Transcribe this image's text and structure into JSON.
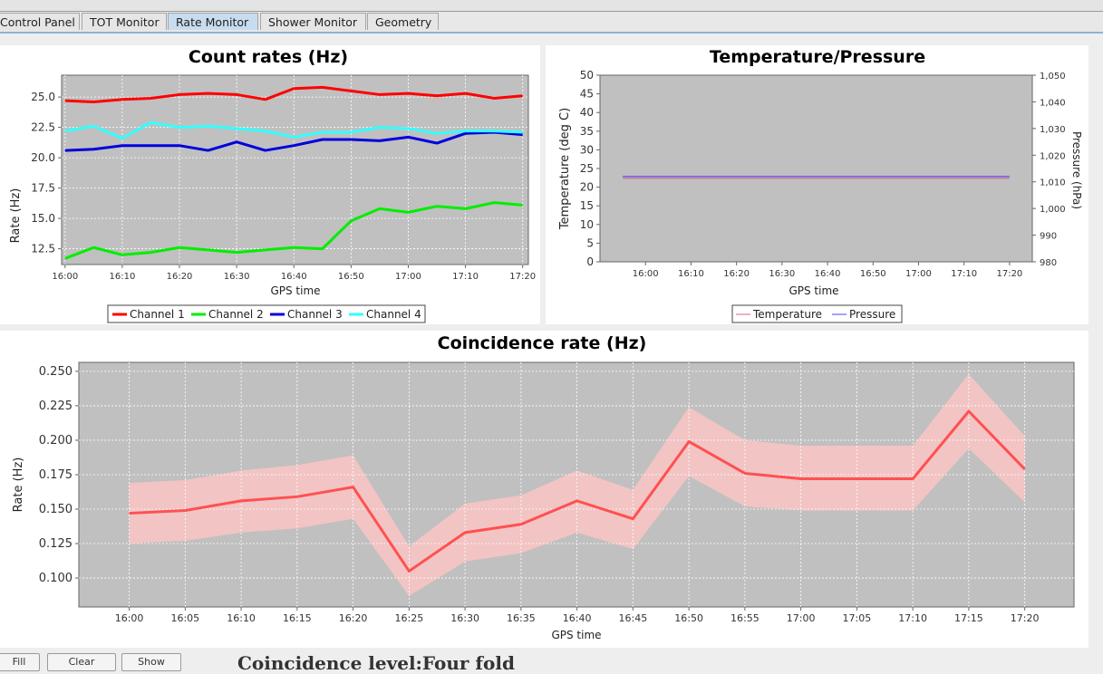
{
  "tabs": [
    {
      "label": "Control Panel",
      "active": false
    },
    {
      "label": "TOT Monitor",
      "active": false
    },
    {
      "label": "Rate Monitor",
      "active": true
    },
    {
      "label": "Shower Monitor",
      "active": false
    },
    {
      "label": "Geometry",
      "active": false
    }
  ],
  "colors": {
    "plot_bg": "#c0c0c0",
    "channel1": "#ff0000",
    "channel2": "#00ee00",
    "channel3": "#0000dd",
    "channel4": "#33ffff",
    "temperature": "#e06080",
    "pressure": "#4444ff",
    "coinc_line": "#ff5050",
    "coinc_band": "#f2c4c4"
  },
  "count_rates": {
    "chart_data": {
      "type": "line",
      "title": "Count rates (Hz)",
      "xlabel": "GPS time",
      "ylabel": "Rate (Hz)",
      "x_ticks": [
        "16:00",
        "16:10",
        "16:20",
        "16:30",
        "16:40",
        "16:50",
        "17:00",
        "17:10",
        "17:20"
      ],
      "y_ticks": [
        "12.5",
        "15.0",
        "17.5",
        "20.0",
        "22.5",
        "25.0"
      ],
      "xlim": [
        -0.6,
        81
      ],
      "ylim": [
        11.2,
        26.8
      ],
      "grid": true,
      "legend_position": "bottom",
      "x": [
        0,
        5,
        10,
        15,
        20,
        25,
        30,
        35,
        40,
        45,
        50,
        55,
        60,
        65,
        70,
        75,
        80
      ],
      "series": [
        {
          "name": "Channel 1",
          "values": [
            24.7,
            24.6,
            24.8,
            24.9,
            25.2,
            25.3,
            25.2,
            24.8,
            25.7,
            25.8,
            25.5,
            25.2,
            25.3,
            25.1,
            25.3,
            24.9,
            25.1
          ]
        },
        {
          "name": "Channel 2",
          "values": [
            11.7,
            12.6,
            12.0,
            12.2,
            12.6,
            12.4,
            12.2,
            12.4,
            12.6,
            12.5,
            14.8,
            15.8,
            15.5,
            16.0,
            15.8,
            16.3,
            16.1
          ]
        },
        {
          "name": "Channel 3",
          "values": [
            20.6,
            20.7,
            21.0,
            21.0,
            21.0,
            20.6,
            21.3,
            20.6,
            21.0,
            21.5,
            21.5,
            21.4,
            21.7,
            21.2,
            22.0,
            22.1,
            21.9
          ]
        },
        {
          "name": "Channel 4",
          "values": [
            22.2,
            22.6,
            21.6,
            22.9,
            22.5,
            22.6,
            22.4,
            22.2,
            21.7,
            22.1,
            22.1,
            22.5,
            22.4,
            22.0,
            22.2,
            22.2,
            22.1
          ]
        }
      ]
    }
  },
  "temp_pressure": {
    "chart_data": {
      "type": "line",
      "title": "Temperature/Pressure",
      "xlabel": "GPS time",
      "ylabel": "Temperature (deg C)",
      "y2label": "Pressure (hPa)",
      "x_ticks": [
        "16:00",
        "16:10",
        "16:20",
        "16:30",
        "16:40",
        "16:50",
        "17:00",
        "17:10",
        "17:20"
      ],
      "y_ticks": [
        "0",
        "5",
        "10",
        "15",
        "20",
        "25",
        "30",
        "35",
        "40",
        "45",
        "50"
      ],
      "y2_ticks": [
        "980",
        "990",
        "1,000",
        "1,010",
        "1,020",
        "1,030",
        "1,040",
        "1,050"
      ],
      "xlim": [
        -10,
        85
      ],
      "ylim": [
        0,
        50
      ],
      "y2lim": [
        980,
        1050
      ],
      "grid": false,
      "legend_position": "bottom",
      "x": [
        -5,
        80
      ],
      "series": [
        {
          "name": "Temperature",
          "axis": "left",
          "values": [
            22.4,
            22.4
          ]
        },
        {
          "name": "Pressure",
          "axis": "right",
          "values": [
            1012,
            1012
          ]
        }
      ]
    }
  },
  "coincidence": {
    "chart_data": {
      "type": "line",
      "title": "Coincidence rate (Hz)",
      "xlabel": "GPS time",
      "ylabel": "Rate (Hz)",
      "x_ticks": [
        "16:00",
        "16:05",
        "16:10",
        "16:15",
        "16:20",
        "16:25",
        "16:30",
        "16:35",
        "16:40",
        "16:45",
        "16:50",
        "16:55",
        "17:00",
        "17:05",
        "17:10",
        "17:15",
        "17:20"
      ],
      "y_ticks": [
        "0.100",
        "0.125",
        "0.150",
        "0.175",
        "0.200",
        "0.225",
        "0.250"
      ],
      "xlim": [
        -4.5,
        84.4
      ],
      "ylim": [
        0.079,
        0.2565
      ],
      "grid": true,
      "x": [
        0,
        5,
        10,
        15,
        20,
        25,
        30,
        35,
        40,
        45,
        50,
        55,
        60,
        65,
        70,
        75,
        80
      ],
      "series": [
        {
          "name": "",
          "values": [
            0.147,
            0.149,
            0.156,
            0.159,
            0.166,
            0.105,
            0.133,
            0.139,
            0.156,
            0.143,
            0.199,
            0.176,
            0.172,
            0.172,
            0.172,
            0.221,
            0.179
          ]
        }
      ],
      "upper": [
        0.169,
        0.171,
        0.178,
        0.182,
        0.189,
        0.123,
        0.154,
        0.16,
        0.178,
        0.164,
        0.224,
        0.2,
        0.196,
        0.196,
        0.196,
        0.248,
        0.203
      ],
      "lower": [
        0.125,
        0.127,
        0.133,
        0.136,
        0.143,
        0.087,
        0.112,
        0.118,
        0.133,
        0.121,
        0.174,
        0.152,
        0.149,
        0.149,
        0.149,
        0.194,
        0.155
      ]
    }
  },
  "bottom_controls": {
    "buttons": [
      "Fill",
      "Clear",
      "Show"
    ],
    "coincidence_level": "Coincidence level:Four fold"
  }
}
